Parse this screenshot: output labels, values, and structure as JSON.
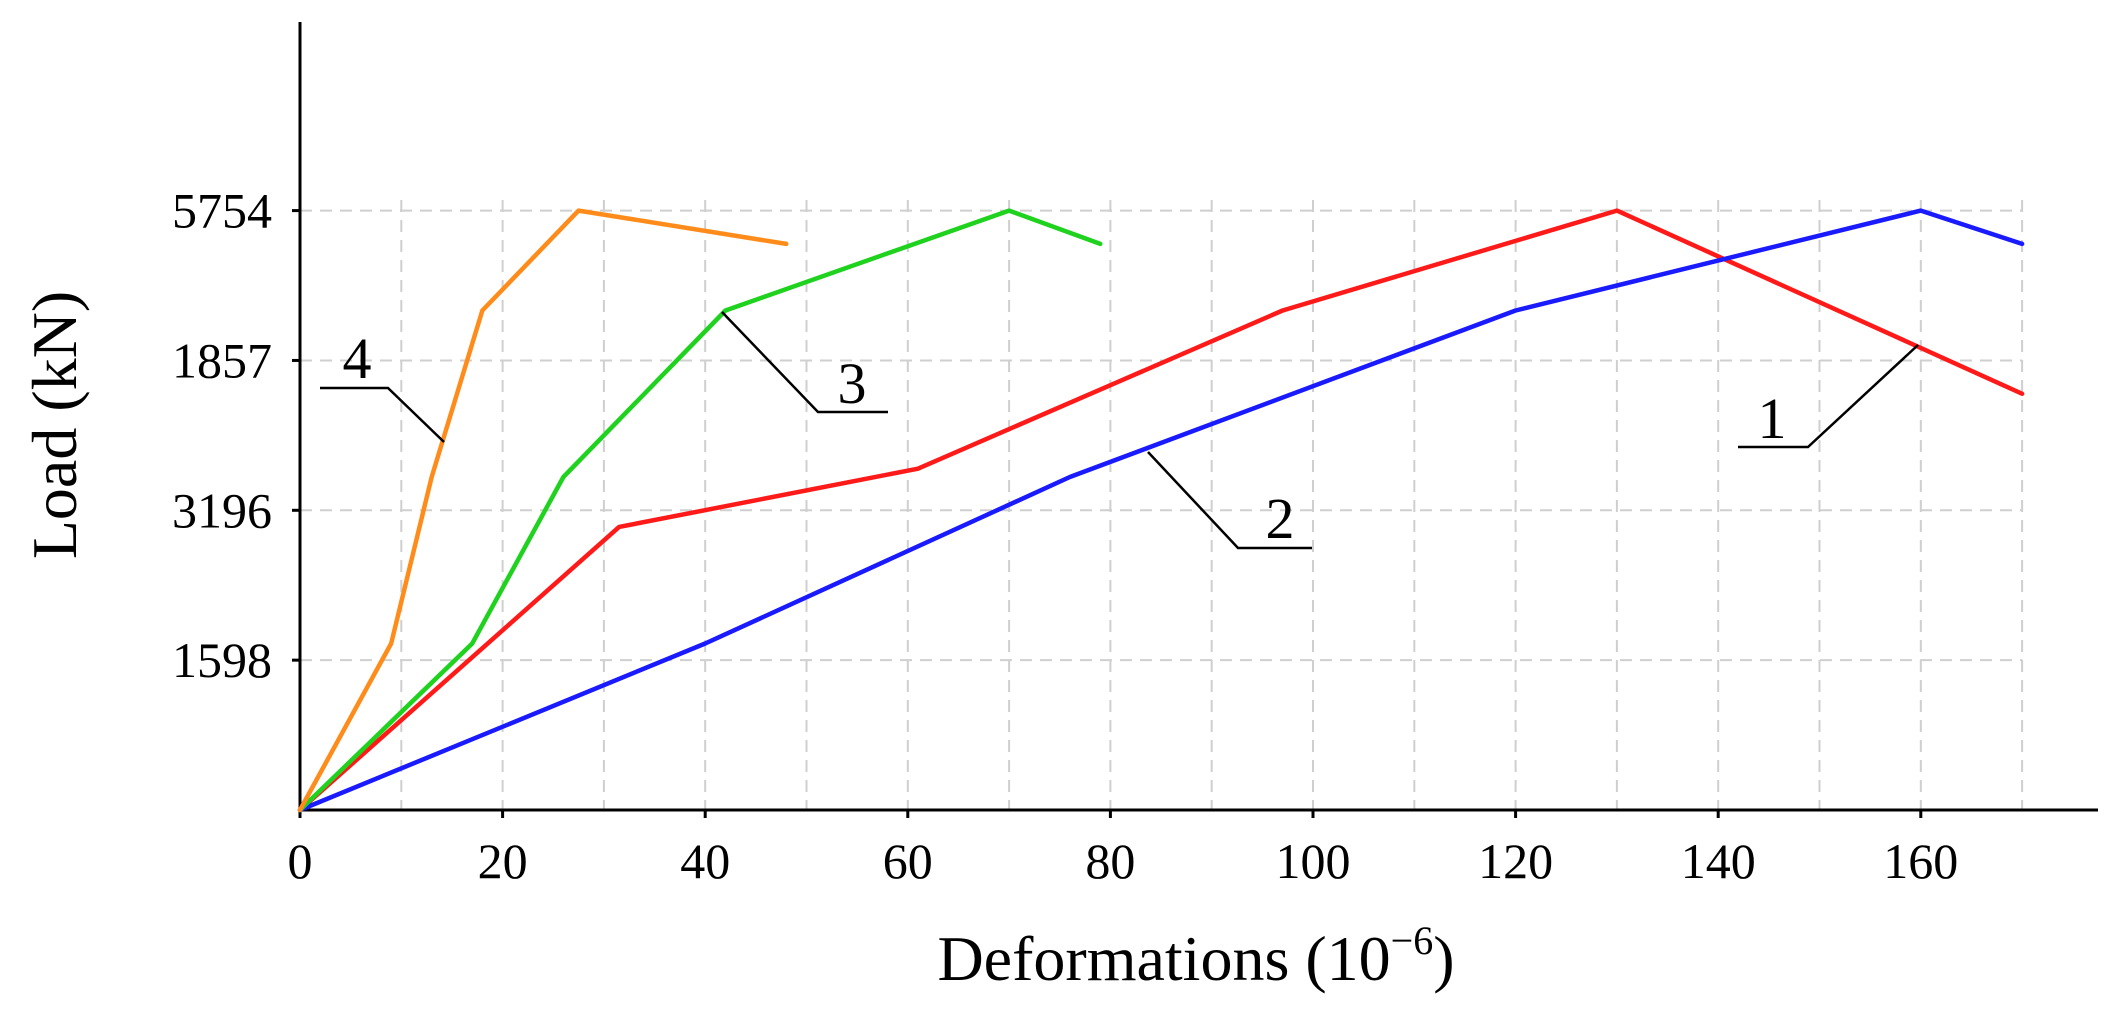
{
  "chart_data": {
    "type": "line",
    "xlabel_main": "Deformations (10",
    "xlabel_exp": "−6",
    "xlabel_close": ")",
    "ylabel": "Load (kN)",
    "xlim": [
      0,
      175
    ],
    "x_ticks": [
      0,
      20,
      40,
      60,
      80,
      100,
      120,
      140,
      160
    ],
    "x_tick_labels": [
      "0",
      "20",
      "40",
      "60",
      "80",
      "100",
      "120",
      "140",
      "160"
    ],
    "y_level_labels": [
      "1598",
      "3196",
      "1857",
      "5754"
    ],
    "y_level_count": 6.35,
    "grid": true,
    "series": [
      {
        "name": "1",
        "color": "#ff1a1a",
        "x": [
          0,
          31.5,
          61,
          97,
          130,
          170
        ],
        "y": [
          0,
          1.7,
          2.05,
          3.0,
          3.6,
          2.5
        ]
      },
      {
        "name": "2",
        "color": "#1a1aff",
        "x": [
          0,
          40,
          76,
          120,
          160,
          170
        ],
        "y": [
          0,
          1.0,
          2.0,
          3.0,
          3.6,
          3.4
        ]
      },
      {
        "name": "3",
        "color": "#1ed21e",
        "x": [
          0,
          17,
          26,
          42,
          70,
          79
        ],
        "y": [
          0,
          1.0,
          2.0,
          3.0,
          3.6,
          3.4
        ]
      },
      {
        "name": "4",
        "color": "#ff8c1a",
        "x": [
          0,
          9,
          13,
          18,
          27.5,
          48
        ],
        "y": [
          0,
          1.0,
          2.0,
          3.0,
          3.6,
          3.4
        ]
      }
    ],
    "curve_labels": [
      {
        "text": "1",
        "series": 0
      },
      {
        "text": "2",
        "series": 1
      },
      {
        "text": "3",
        "series": 2
      },
      {
        "text": "4",
        "series": 3
      }
    ]
  }
}
